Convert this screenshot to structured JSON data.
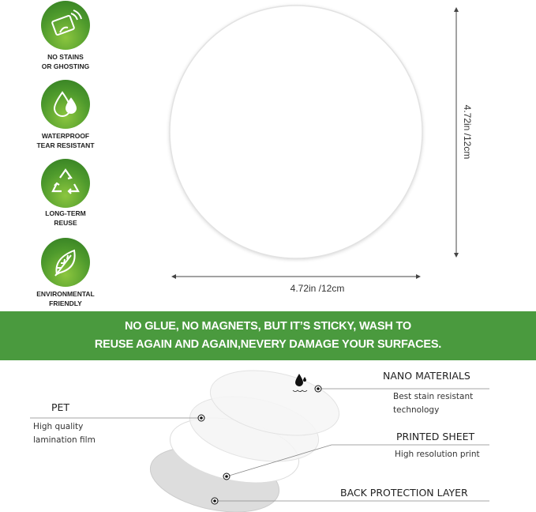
{
  "features": [
    {
      "icon": "hand-wiping-icon",
      "line1": "NO STAINS",
      "line2": "OR GHOSTING"
    },
    {
      "icon": "water-drops-icon",
      "line1": "WATERPROOF",
      "line2": "TEAR RESISTANT"
    },
    {
      "icon": "recycle-icon",
      "line1": "LONG-TERM",
      "line2": "REUSE"
    },
    {
      "icon": "leaf-icon",
      "line1": "ENVIRONMENTAL",
      "line2": "FRIENDLY"
    }
  ],
  "dimensions": {
    "width": "4.72in /12cm",
    "height": "4.72in /12cm"
  },
  "banner": {
    "line1": "NO GLUE, NO MAGNETS, BUT IT’S STICKY, WASH TO",
    "line2": "REUSE AGAIN AND AGAIN,NEVERY DAMAGE YOUR SURFACES."
  },
  "layers": {
    "nano": {
      "title": "NANO MATERIALS",
      "desc1": "Best stain resistant",
      "desc2": "technology"
    },
    "pet": {
      "title": "PET",
      "desc1": "High quality",
      "desc2": "lamination film"
    },
    "printed": {
      "title": "PRINTED SHEET",
      "desc1": "High resolution print"
    },
    "back": {
      "title": "BACK PROTECTION LAYER"
    }
  },
  "colors": {
    "brand_green": "#4a9a3e"
  }
}
